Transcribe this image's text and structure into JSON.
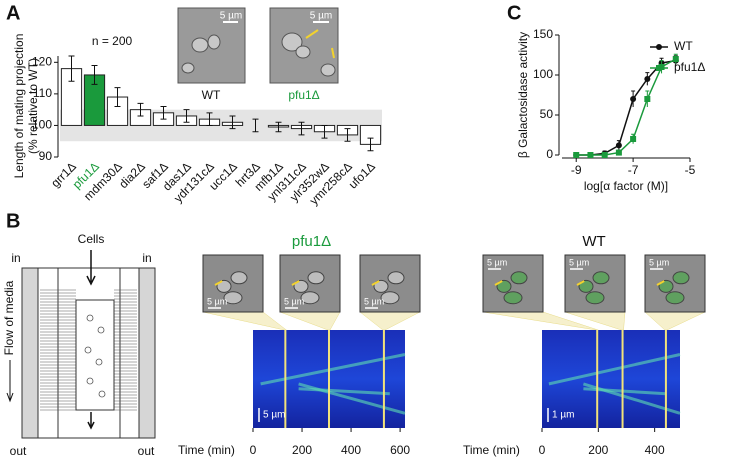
{
  "panels": {
    "a": "A",
    "b": "B",
    "c": "C"
  },
  "micrographs": {
    "labels": [
      "WT",
      "pfu1Δ"
    ],
    "scale_labels": [
      "5 µm",
      "5 µm"
    ]
  },
  "diagram": {
    "cells": "Cells",
    "inlets": [
      "in",
      "in"
    ],
    "outlets": [
      "out",
      "out"
    ],
    "flow": "Flow of media"
  },
  "chart_data": [
    {
      "type": "bar",
      "annotation": "n = 200",
      "ylabel": [
        "Length of mating projection",
        "(% relative to WT)"
      ],
      "categories": [
        "grr1Δ",
        "pfu1Δ",
        "mdm30Δ",
        "dia2Δ",
        "saf1Δ",
        "das1Δ",
        "ydr131cΔ",
        "ucc1Δ",
        "hrt3Δ",
        "mfb1Δ",
        "ynl311cΔ",
        "ylr352wΔ",
        "ymr258cΔ",
        "ufo1Δ"
      ],
      "values": [
        118,
        116,
        109,
        105,
        104,
        103,
        102,
        101,
        100,
        99.5,
        99,
        98,
        97,
        94
      ],
      "errors": [
        4,
        3,
        3,
        2,
        2,
        2,
        2,
        2,
        2,
        1.5,
        2,
        2,
        2,
        2
      ],
      "colors": [
        "#ffffff",
        "#1a9a3c",
        "#ffffff",
        "#ffffff",
        "#ffffff",
        "#ffffff",
        "#ffffff",
        "#ffffff",
        "#ffffff",
        "#ffffff",
        "#ffffff",
        "#ffffff",
        "#ffffff",
        "#ffffff"
      ],
      "label_colors": [
        "#111111",
        "#1a9a3c",
        "#111111",
        "#111111",
        "#111111",
        "#111111",
        "#111111",
        "#111111",
        "#111111",
        "#111111",
        "#111111",
        "#111111",
        "#111111",
        "#111111"
      ],
      "bar_base": 100,
      "reference_band": [
        95,
        105
      ],
      "ylim": [
        90,
        122
      ],
      "yticks": [
        90,
        100,
        110,
        120
      ]
    },
    {
      "type": "line",
      "xlabel": "log[α factor (M)]",
      "ylabel": "β Galactosidase activity",
      "legend": "upper-right",
      "xlim": [
        -9.5,
        -5
      ],
      "xticks": [
        -9,
        -7,
        -5
      ],
      "ylim": [
        0,
        150
      ],
      "yticks": [
        0,
        50,
        100,
        150
      ],
      "x": [
        -9,
        -8.5,
        -8,
        -7.5,
        -7,
        -6.5,
        -6,
        -5.5
      ],
      "series": [
        {
          "name": "WT",
          "color": "#111111",
          "marker": "circle",
          "values": [
            0,
            0,
            2,
            12,
            70,
            95,
            115,
            118
          ],
          "errors": [
            2,
            2,
            3,
            6,
            10,
            8,
            6,
            6
          ]
        },
        {
          "name": "pfu1Δ",
          "color": "#1a9a3c",
          "marker": "square",
          "values": [
            0,
            0,
            0,
            3,
            20,
            70,
            110,
            120
          ],
          "errors": [
            2,
            2,
            2,
            3,
            6,
            10,
            8,
            6
          ]
        }
      ]
    },
    {
      "type": "kymograph",
      "title": "pfu1Δ",
      "title_color": "#1a9a3c",
      "xlabel": "Time (min)",
      "xlim": [
        0,
        620
      ],
      "xticks": [
        0,
        200,
        400,
        600
      ],
      "markers": [
        132,
        310,
        534
      ],
      "scale_label": "5 µm",
      "inset_scale_labels": [
        "5 µm",
        "5 µm",
        "5 µm"
      ]
    },
    {
      "type": "kymograph",
      "title": "WT",
      "title_color": "#111111",
      "xlabel": "Time (min)",
      "xlim": [
        0,
        490
      ],
      "xticks": [
        0,
        200,
        400
      ],
      "markers": [
        196,
        286,
        440
      ],
      "scale_label": "1 µm",
      "inset_scale_labels": [
        "5 µm",
        "5 µm",
        "5 µm"
      ]
    }
  ]
}
